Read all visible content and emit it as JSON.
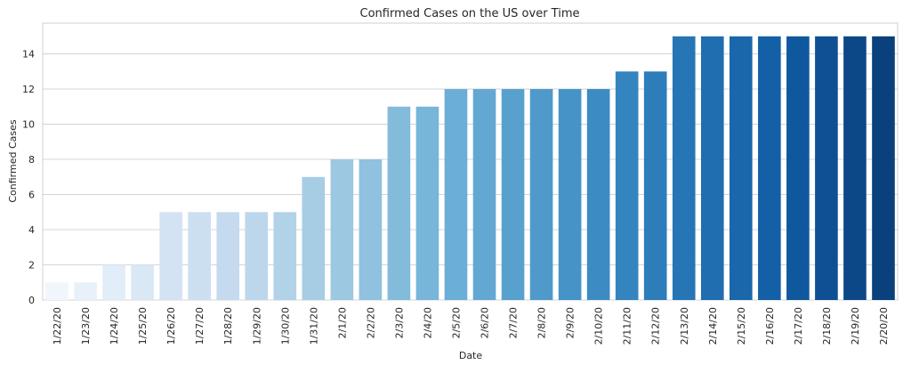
{
  "chart_data": {
    "type": "bar",
    "title": "Confirmed Cases on the US over Time",
    "xlabel": "Date",
    "ylabel": "Confirmed Cases",
    "categories": [
      "1/22/20",
      "1/23/20",
      "1/24/20",
      "1/25/20",
      "1/26/20",
      "1/27/20",
      "1/28/20",
      "1/29/20",
      "1/30/20",
      "1/31/20",
      "2/1/20",
      "2/2/20",
      "2/3/20",
      "2/4/20",
      "2/5/20",
      "2/6/20",
      "2/7/20",
      "2/8/20",
      "2/9/20",
      "2/10/20",
      "2/11/20",
      "2/12/20",
      "2/13/20",
      "2/14/20",
      "2/15/20",
      "2/16/20",
      "2/17/20",
      "2/18/20",
      "2/19/20",
      "2/20/20"
    ],
    "values": [
      1,
      1,
      2,
      2,
      5,
      5,
      5,
      5,
      5,
      7,
      8,
      8,
      11,
      11,
      12,
      12,
      12,
      12,
      12,
      12,
      13,
      13,
      15,
      15,
      15,
      15,
      15,
      15,
      15,
      15
    ],
    "ylim": [
      0,
      15.75
    ],
    "yticks": [
      0,
      2,
      4,
      6,
      8,
      10,
      12,
      14
    ],
    "grid": "horizontal",
    "palette": "Blues (light to dark)",
    "colors": [
      "#f0f6fc",
      "#e8f1fa",
      "#e1edf8",
      "#dae8f5",
      "#d3e3f3",
      "#ccdff1",
      "#c5daef",
      "#bcd7eb",
      "#b2d2e8",
      "#a7cde4",
      "#9cc8e1",
      "#90c1de",
      "#83bbdb",
      "#77b5d9",
      "#6baed6",
      "#62a8d3",
      "#58a1cf",
      "#4f9acb",
      "#4593c7",
      "#3c8cc3",
      "#3484bf",
      "#2d7dbb",
      "#2676b6",
      "#206eb0",
      "#1a67ab",
      "#1460a6",
      "#10589e",
      "#0e5093",
      "#0c4888",
      "#0a407c"
    ]
  }
}
